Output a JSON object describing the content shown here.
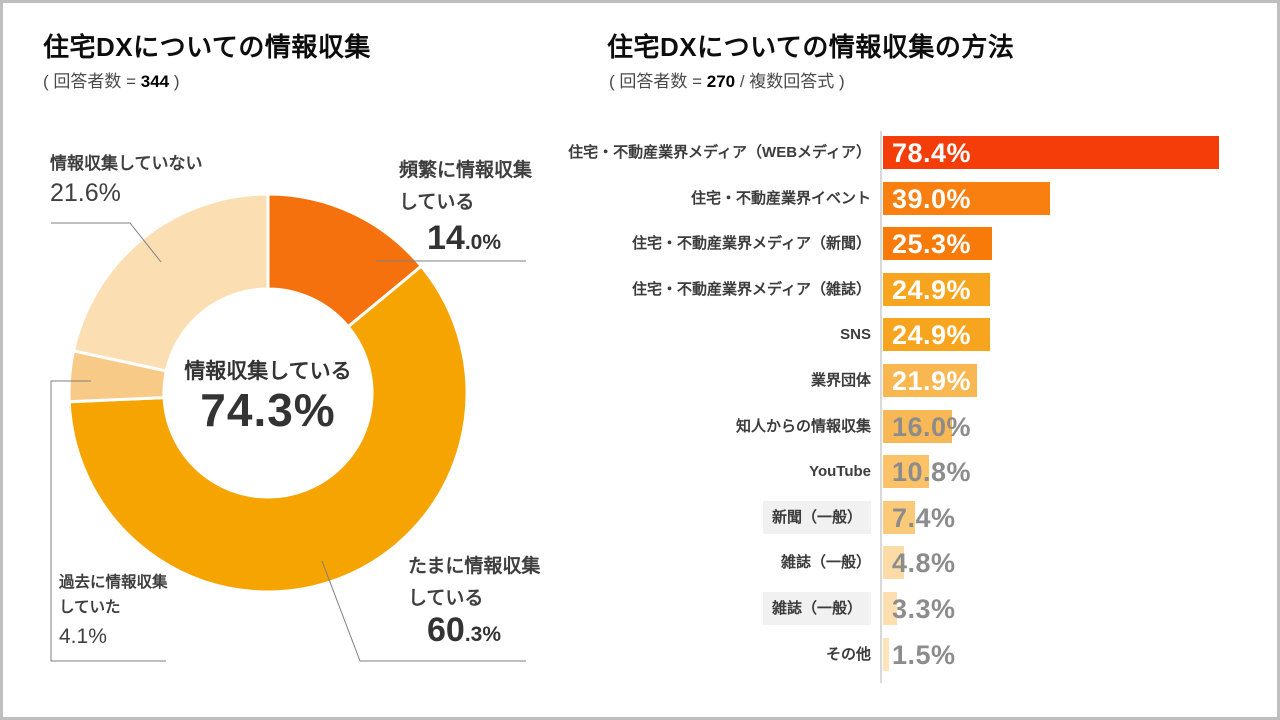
{
  "page": {
    "background": "#ffffff",
    "border_color": "#bfbfbf"
  },
  "left_section": {
    "title": "住宅DXについての情報収集",
    "subtitle_prefix": "( 回答者数 = ",
    "subtitle_number": "344",
    "subtitle_suffix": " )"
  },
  "right_section": {
    "title": "住宅DXについての情報収集の方法",
    "subtitle_prefix": "( 回答者数 = ",
    "subtitle_number": "270",
    "subtitle_suffix": " / 複数回答式 )"
  },
  "chart_data": [
    {
      "type": "pie",
      "subtype": "donut",
      "title": "住宅DXについての情報収集",
      "center_label": "情報収集している",
      "center_value": 74.3,
      "start_angle_deg": 0,
      "direction": "clockwise",
      "slices": [
        {
          "label": "頻繁に情報収集している",
          "label_lines": [
            "頻繁に情報収集",
            "している"
          ],
          "value": 14.0,
          "color": "#f4710d"
        },
        {
          "label": "たまに情報収集している",
          "label_lines": [
            "たまに情報収集",
            "している"
          ],
          "value": 60.3,
          "color": "#f5a402"
        },
        {
          "label": "過去に情報収集していた",
          "label_lines": [
            "過去に情報収集",
            "していた"
          ],
          "value": 4.1,
          "color": "#f8ca87"
        },
        {
          "label": "情報収集していない",
          "label_lines": [
            "情報収集していない"
          ],
          "value": 21.6,
          "color": "#fbdfb3"
        }
      ]
    },
    {
      "type": "bar",
      "orientation": "horizontal",
      "title": "住宅DXについての情報収集の方法",
      "xlim": [
        0,
        100
      ],
      "grid": false,
      "categories": [
        "住宅・不動産業界メディア（WEBメディア）",
        "住宅・不動産業界イベント",
        "住宅・不動産業界メディア（新聞）",
        "住宅・不動産業界メディア（雑誌）",
        "SNS",
        "業界団体",
        "知人からの情報収集",
        "YouTube",
        "新聞（一般）",
        "雑誌（一般）",
        "雑誌（一般）",
        "その他"
      ],
      "values": [
        78.4,
        39.0,
        25.3,
        24.9,
        24.9,
        21.9,
        16.0,
        10.8,
        7.4,
        4.8,
        3.3,
        1.5
      ],
      "bar_colors": [
        "#f53d0a",
        "#f87f10",
        "#f87a08",
        "#f7a51f",
        "#f7a51f",
        "#f9b752",
        "#f9b856",
        "#fbc268",
        "#fbca79",
        "#fcdba6",
        "#fcdfaf",
        "#fce3ba"
      ],
      "value_label_colors": [
        "#ffffff",
        "#ffffff",
        "#ffffff",
        "#ffffff",
        "#ffffff",
        "#ffffff",
        "#8c8c8c",
        "#8c8c8c",
        "#8c8c8c",
        "#8c8c8c",
        "#8c8c8c",
        "#8c8c8c"
      ],
      "category_bg_rows": [
        8,
        10
      ],
      "axis_color": "#d9d9d9",
      "leader_line_color": "#7f7f7f"
    }
  ]
}
